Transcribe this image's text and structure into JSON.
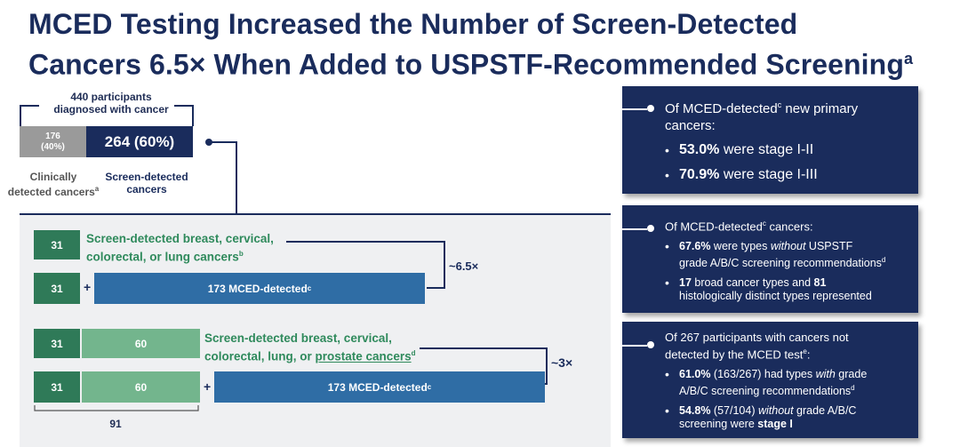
{
  "title": {
    "line1": "MCED Testing Increased the Number of Screen-Detected",
    "line2": "Cancers 6.5× When Added to USPSTF-Recommended Screening",
    "sup": "a"
  },
  "top": {
    "participants_line1": "440 participants",
    "participants_line2": "diagnosed with cancer",
    "clin_count": "176",
    "clin_pct": "(40%)",
    "screen_value": "264 (60%)",
    "clin_label1": "Clinically",
    "clin_label2": "detected cancers",
    "clin_sup": "a",
    "screen_label1": "Screen-detected",
    "screen_label2": "cancers"
  },
  "chart": {
    "row1_value": "31",
    "row1_text1": "Screen-detected breast, cervical,",
    "row1_text2": "colorectal, or lung cancers",
    "row1_sup": "b",
    "row2_value": "31",
    "row2_mced": "173 MCED-detected",
    "row2_sup": "c",
    "mult1": "~6.5×",
    "row3_a": "31",
    "row3_b": "60",
    "row3_text1": "Screen-detected breast, cervical,",
    "row3_text2a": "colorectal, lung, or ",
    "row3_text2b": "prostate cancers",
    "row3_sup": "d",
    "row4_a": "31",
    "row4_b": "60",
    "row4_mced": "173 MCED-detected",
    "row4_sup": "c",
    "mult2": "~3×",
    "sum": "91",
    "plus": "+"
  },
  "panel1": {
    "head1": "Of MCED-detected",
    "head_sup": "c",
    "head2": " new primary",
    "head3": "cancers:",
    "b1_bold": "53.0%",
    "b1_rest": " were stage I-II",
    "b2_bold": "70.9%",
    "b2_rest": " were stage I-III"
  },
  "panel2": {
    "head1": "Of MCED-detected",
    "head_sup": "c",
    "head2": " cancers:",
    "b1_bold": "67.6%",
    "b1_a": " were types ",
    "b1_italic": "without",
    "b1_b": " USPSTF",
    "b1_line2": "grade A/B/C screening recommendations",
    "b1_sup": "d",
    "b2_bold1": "17",
    "b2_a": " broad cancer types and ",
    "b2_bold2": "81",
    "b2_line2": "histologically distinct types represented"
  },
  "panel3": {
    "head1": "Of 267 participants with cancers not",
    "head2": "detected by the MCED test",
    "head_sup": "e",
    "head3": ":",
    "b1_bold": "61.0%",
    "b1_a": " (163/267) had types ",
    "b1_italic": "with",
    "b1_b": " grade",
    "b1_line2": "A/B/C screening recommendations",
    "b1_sup": "d",
    "b2_bold": "54.8%",
    "b2_a": " (57/104) ",
    "b2_italic": "without",
    "b2_b": " grade A/B/C",
    "b2_line2": "screening were ",
    "b2_bold2": "stage I"
  },
  "colors": {
    "navy": "#1a2c5c",
    "dark_green": "#2f7a58",
    "light_green": "#73b58d",
    "blue": "#2f6da5",
    "gray": "#9a9a9a"
  }
}
